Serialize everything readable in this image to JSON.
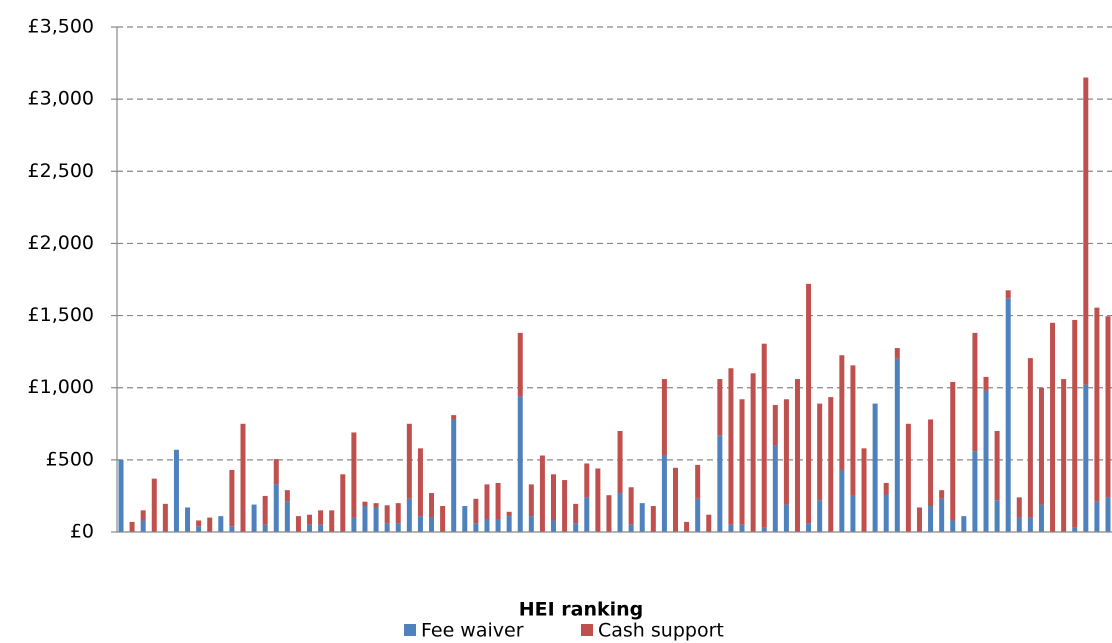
{
  "chart_data": {
    "type": "stacked_bar",
    "x_label": "HEI ranking",
    "categories": [
      null,
      null,
      null,
      null,
      null,
      null,
      null,
      null,
      null,
      null,
      null,
      null,
      null,
      null,
      null,
      null,
      null,
      null,
      null,
      null,
      null,
      null,
      null,
      null,
      null,
      null,
      null,
      null,
      null,
      null,
      null,
      null,
      null,
      null,
      null,
      null,
      null,
      null,
      null,
      null,
      null,
      null,
      null,
      null,
      null,
      null,
      null,
      null,
      null,
      null,
      null,
      null,
      null,
      null,
      null,
      null,
      null,
      null,
      null,
      null,
      null,
      null,
      null,
      null,
      null,
      null,
      null,
      null,
      null,
      null,
      null,
      null,
      null,
      null,
      null,
      null,
      null,
      null,
      null,
      null,
      null,
      null,
      null,
      null,
      null,
      null,
      null,
      null,
      null,
      null
    ],
    "series": [
      {
        "name": "Fee waiver",
        "color": "#4f81bd",
        "values": [
          500,
          0,
          80,
          0,
          0,
          570,
          170,
          40,
          0,
          110,
          40,
          0,
          190,
          50,
          330,
          210,
          0,
          50,
          50,
          0,
          0,
          100,
          180,
          170,
          60,
          60,
          230,
          110,
          100,
          0,
          780,
          180,
          60,
          90,
          90,
          110,
          940,
          110,
          0,
          80,
          0,
          60,
          240,
          0,
          0,
          270,
          50,
          200,
          0,
          530,
          0,
          0,
          230,
          0,
          670,
          50,
          50,
          0,
          30,
          600,
          190,
          0,
          60,
          220,
          0,
          430,
          250,
          0,
          890,
          260,
          1200,
          0,
          0,
          180,
          230,
          80,
          110,
          560,
          980,
          220,
          1620,
          100,
          100,
          190,
          0,
          0,
          30,
          1020,
          210,
          240
        ]
      },
      {
        "name": "Cash support",
        "color": "#c0504d",
        "values": [
          0,
          70,
          70,
          370,
          195,
          0,
          0,
          40,
          100,
          0,
          390,
          750,
          0,
          200,
          175,
          80,
          110,
          70,
          100,
          150,
          400,
          590,
          30,
          30,
          125,
          140,
          520,
          470,
          170,
          180,
          30,
          0,
          170,
          240,
          250,
          30,
          440,
          220,
          530,
          320,
          360,
          135,
          235,
          440,
          255,
          430,
          260,
          0,
          180,
          530,
          445,
          70,
          235,
          120,
          390,
          1085,
          870,
          1100,
          1275,
          280,
          730,
          1060,
          1660,
          670,
          935,
          795,
          905,
          580,
          0,
          80,
          75,
          750,
          170,
          600,
          60,
          960,
          0,
          820,
          95,
          480,
          55,
          140,
          1105,
          810,
          1450,
          1060,
          1440,
          2130,
          1345,
          1255
        ]
      }
    ],
    "ylim": [
      0,
      3500
    ],
    "yticks": [
      {
        "value": 0,
        "label": "£0"
      },
      {
        "value": 500,
        "label": "£500"
      },
      {
        "value": 1000,
        "label": "£1,000"
      },
      {
        "value": 1500,
        "label": "£1,500"
      },
      {
        "value": 2000,
        "label": "£2,000"
      },
      {
        "value": 2500,
        "label": "£2,500"
      },
      {
        "value": 3000,
        "label": "£3,000"
      },
      {
        "value": 3500,
        "label": "£3,500"
      }
    ],
    "grid": true
  }
}
